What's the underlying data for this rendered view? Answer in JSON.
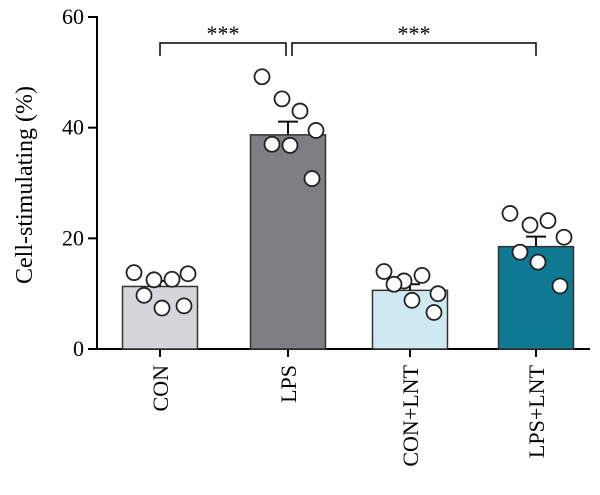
{
  "chart_data": {
    "type": "bar",
    "ylabel": "Cell-stimulating (%)",
    "ylim": [
      0,
      60
    ],
    "yticks": [
      0,
      20,
      40,
      60
    ],
    "categories": [
      "CON",
      "LPS",
      "CON+LNT",
      "LPS+LNT"
    ],
    "values": [
      11.3,
      38.7,
      10.6,
      18.5
    ],
    "errors": [
      1.0,
      2.4,
      1.1,
      1.8
    ],
    "colors": [
      "#d4d6d9",
      "#7d7f83",
      "#cfe9f3",
      "#0f7892"
    ],
    "points": [
      [
        13.8,
        12.5,
        12.6,
        13.6,
        9.7,
        7.4,
        7.8
      ],
      [
        49.2,
        45.2,
        43.0,
        39.5,
        37.0,
        36.8,
        30.8
      ],
      [
        14.0,
        12.3,
        13.3,
        10.0,
        11.7,
        8.8,
        6.6
      ],
      [
        24.5,
        22.4,
        23.2,
        20.2,
        17.5,
        15.7,
        11.4
      ]
    ],
    "significance": [
      {
        "from": 0,
        "to": 1,
        "label": "***"
      },
      {
        "from": 1,
        "to": 3,
        "label": "***"
      }
    ],
    "grid": false,
    "legend": "none"
  }
}
